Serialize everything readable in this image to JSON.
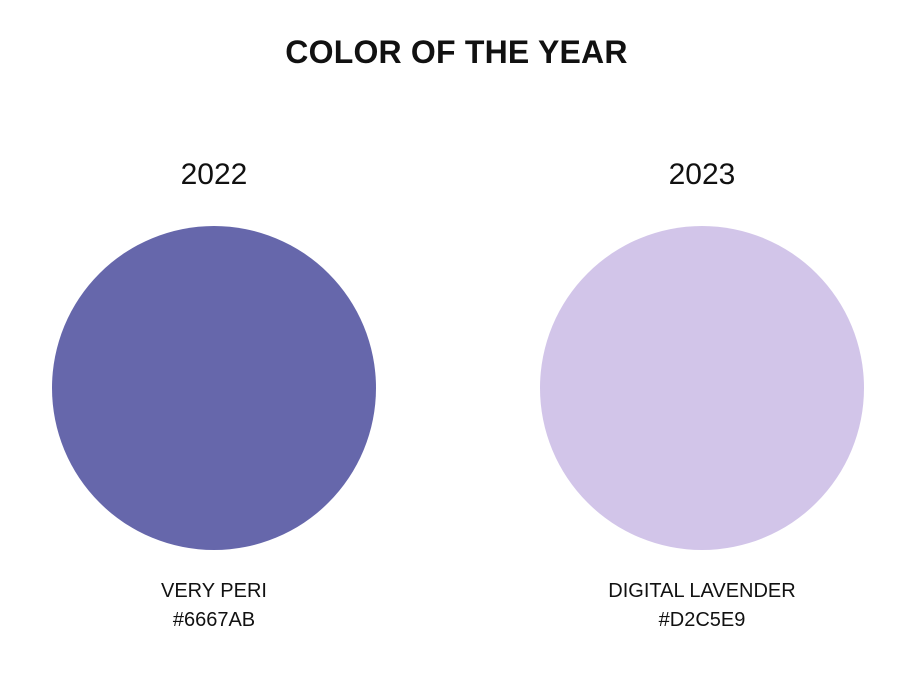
{
  "title": "COLOR OF THE YEAR",
  "swatches": [
    {
      "year": "2022",
      "name": "VERY PERI",
      "hex": "#6667AB",
      "color": "#6667AB"
    },
    {
      "year": "2023",
      "name": "DIGITAL LAVENDER",
      "hex": "#D2C5E9",
      "color": "#D2C5E9"
    }
  ]
}
